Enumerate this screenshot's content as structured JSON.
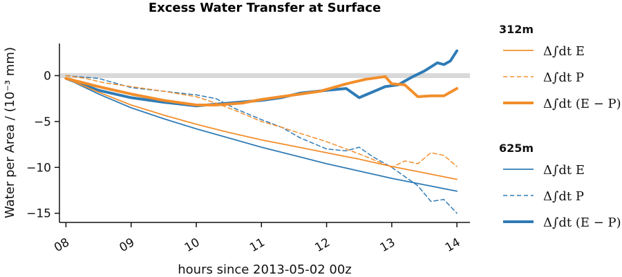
{
  "chart_data": {
    "type": "line",
    "title": "Excess Water Transfer at Surface",
    "xlabel": "hours since 2013-05-02 00z",
    "ylabel": "Water per Area / (10⁻³ mm)",
    "xlim": [
      7.9,
      14.2
    ],
    "ylim": [
      -16,
      3.5
    ],
    "xticks": [
      8,
      9,
      10,
      11,
      12,
      13,
      14
    ],
    "xtick_labels": [
      "08",
      "09",
      "10",
      "11",
      "12",
      "13",
      "14"
    ],
    "yticks": [
      0,
      -5,
      -10,
      -15
    ],
    "ytick_labels": [
      "0",
      "−5",
      "−10",
      "−15"
    ],
    "zero_line": true,
    "grid": false,
    "legend_placement": "right, outside plot",
    "legend_groups": [
      {
        "title": "312m",
        "entries": [
          "Δ∫dt E",
          "Δ∫dt P",
          "Δ∫dt (E − P)"
        ]
      },
      {
        "title": "625m",
        "entries": [
          "Δ∫dt E",
          "Δ∫dt P",
          "Δ∫dt (E − P)"
        ]
      }
    ],
    "colors": {
      "312m": "#f28e2b",
      "625m": "#2f7bb6",
      "zero_line": "#d9d9d9"
    },
    "series": [
      {
        "group": "312m",
        "style": "solid-thin",
        "color": "#f28e2b",
        "x": [
          8,
          8.5,
          9,
          9.5,
          10,
          10.5,
          11,
          11.5,
          12,
          12.5,
          13,
          13.5,
          14
        ],
        "y": [
          -0.3,
          -1.8,
          -3.2,
          -4.3,
          -5.3,
          -6.2,
          -7.0,
          -7.7,
          -8.4,
          -9.1,
          -9.9,
          -10.6,
          -11.3
        ]
      },
      {
        "group": "312m",
        "style": "dashed",
        "color": "#f28e2b",
        "x": [
          8,
          8.3,
          8.6,
          9,
          9.5,
          10,
          10.3,
          10.6,
          11,
          11.3,
          11.6,
          12,
          12.3,
          12.6,
          13,
          13.2,
          13.4,
          13.6,
          13.8,
          14
        ],
        "y": [
          0.0,
          -0.3,
          -0.8,
          -1.2,
          -1.7,
          -2.3,
          -3.0,
          -3.8,
          -5.0,
          -5.6,
          -6.3,
          -7.2,
          -8.0,
          -8.8,
          -10.0,
          -9.3,
          -9.6,
          -8.4,
          -8.7,
          -9.9
        ]
      },
      {
        "group": "312m",
        "style": "solid-thick",
        "color": "#f28e2b",
        "x": [
          8,
          8.5,
          9,
          9.5,
          10,
          10.3,
          10.7,
          11,
          11.3,
          11.6,
          11.9,
          12.1,
          12.3,
          12.6,
          12.9,
          13,
          13.2,
          13.4,
          13.6,
          13.8,
          14
        ],
        "y": [
          -0.3,
          -1.2,
          -2.0,
          -2.7,
          -3.2,
          -3.2,
          -3.0,
          -2.6,
          -2.3,
          -2.0,
          -1.7,
          -1.3,
          -0.9,
          -0.4,
          -0.1,
          -0.9,
          -1.0,
          -2.3,
          -2.2,
          -2.2,
          -1.4
        ]
      },
      {
        "group": "625m",
        "style": "solid-thin",
        "color": "#2f7bb6",
        "x": [
          8,
          8.5,
          9,
          9.5,
          10,
          10.5,
          11,
          11.5,
          12,
          12.5,
          13,
          13.5,
          14
        ],
        "y": [
          -0.3,
          -2.0,
          -3.5,
          -4.7,
          -5.8,
          -6.8,
          -7.8,
          -8.7,
          -9.6,
          -10.4,
          -11.2,
          -11.9,
          -12.6
        ]
      },
      {
        "group": "625m",
        "style": "dashed",
        "color": "#2f7bb6",
        "x": [
          8,
          8.5,
          9,
          9.5,
          10,
          10.3,
          10.6,
          11,
          11.3,
          11.6,
          12,
          12.3,
          12.5,
          12.7,
          13,
          13.2,
          13.4,
          13.6,
          13.8,
          14
        ],
        "y": [
          0.0,
          -0.3,
          -1.3,
          -1.7,
          -2.1,
          -2.5,
          -3.6,
          -4.8,
          -5.6,
          -6.8,
          -8.0,
          -8.2,
          -7.8,
          -8.8,
          -10.0,
          -11.0,
          -12.0,
          -13.7,
          -13.5,
          -15.0
        ]
      },
      {
        "group": "625m",
        "style": "solid-thick",
        "color": "#2f7bb6",
        "x": [
          8,
          8.5,
          9,
          9.5,
          10,
          10.5,
          11,
          11.3,
          11.6,
          12,
          12.3,
          12.5,
          12.7,
          12.9,
          13.1,
          13.3,
          13.5,
          13.7,
          13.8,
          13.9,
          14
        ],
        "y": [
          -0.3,
          -1.6,
          -2.4,
          -2.9,
          -3.3,
          -3.0,
          -2.7,
          -2.4,
          -1.9,
          -1.6,
          -1.4,
          -2.4,
          -1.8,
          -1.2,
          -1.0,
          -0.2,
          0.5,
          1.4,
          1.2,
          1.6,
          2.7
        ]
      }
    ]
  }
}
